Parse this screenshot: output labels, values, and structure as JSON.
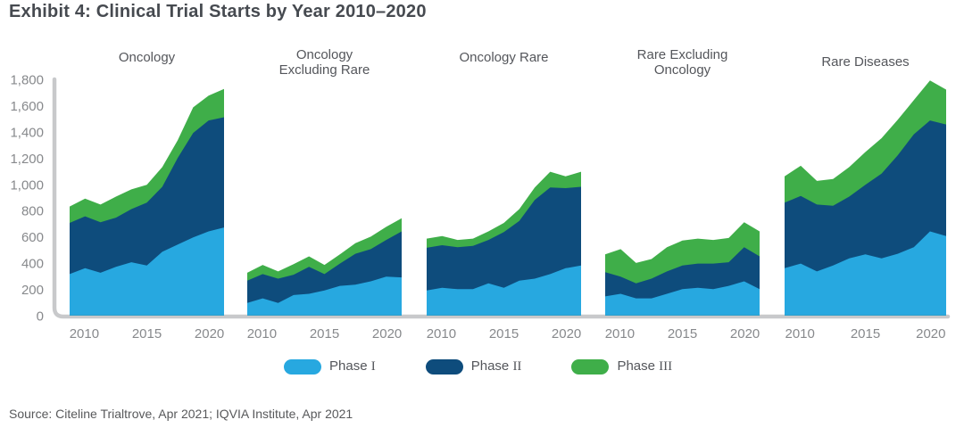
{
  "header": {
    "title": "Exhibit 4: Clinical Trial Starts by Year 2010–2020"
  },
  "footer": {
    "source": "Source: Citeline Trialtrove, Apr 2021; IQVIA Institute, Apr 2021"
  },
  "legend": {
    "items": [
      {
        "word": "Phase",
        "numeral": "I",
        "color": "#27a8e0"
      },
      {
        "word": "Phase",
        "numeral": "II",
        "color": "#0e4c7c"
      },
      {
        "word": "Phase",
        "numeral": "III",
        "color": "#3fae49"
      }
    ]
  },
  "chart_data": {
    "type": "area",
    "stacked": true,
    "title": "Clinical Trial Starts by Year 2010–2020",
    "x": [
      2010,
      2011,
      2012,
      2013,
      2014,
      2015,
      2016,
      2017,
      2018,
      2019,
      2020
    ],
    "x_tick_labels": [
      "2010",
      "2015",
      "2020"
    ],
    "ylim": [
      0,
      1800
    ],
    "y_tick_values": [
      0,
      200,
      400,
      600,
      800,
      1000,
      1200,
      1400,
      1600,
      1800
    ],
    "y_tick_labels": [
      "0",
      "200",
      "400",
      "600",
      "800",
      "1,000",
      "1,200",
      "1,400",
      "1,600",
      "1,800"
    ],
    "grid": false,
    "legend_position": "bottom",
    "series_names": [
      "Phase I",
      "Phase II",
      "Phase III"
    ],
    "colors": {
      "phase_i": "#27a8e0",
      "phase_ii": "#0e4c7c",
      "phase_iii": "#3fae49"
    },
    "panels": [
      {
        "title_lines": [
          "Oncology"
        ],
        "series": [
          {
            "name": "Phase I",
            "values": [
              320,
              365,
              330,
              375,
              410,
              385,
              490,
              545,
              600,
              645,
              675
            ]
          },
          {
            "name": "Phase II",
            "values": [
              390,
              395,
              385,
              375,
              405,
              480,
              495,
              660,
              795,
              845,
              840
            ]
          },
          {
            "name": "Phase III",
            "values": [
              125,
              135,
              135,
              160,
              150,
              135,
              150,
              135,
              195,
              190,
              215
            ]
          }
        ]
      },
      {
        "title_lines": [
          "Oncology",
          "Excluding Rare"
        ],
        "series": [
          {
            "name": "Phase I",
            "values": [
              100,
              135,
              100,
              160,
              170,
              195,
              230,
              240,
              265,
              300,
              295
            ]
          },
          {
            "name": "Phase II",
            "values": [
              170,
              185,
              185,
              155,
              205,
              125,
              170,
              235,
              245,
              280,
              350
            ]
          },
          {
            "name": "Phase III",
            "values": [
              60,
              70,
              55,
              80,
              80,
              70,
              70,
              80,
              95,
              100,
              100
            ]
          }
        ]
      },
      {
        "title_lines": [
          "Oncology Rare"
        ],
        "series": [
          {
            "name": "Phase I",
            "values": [
              195,
              215,
              205,
              205,
              250,
              215,
              270,
              285,
              320,
              365,
              385
            ]
          },
          {
            "name": "Phase II",
            "values": [
              325,
              325,
              320,
              330,
              330,
              425,
              455,
              600,
              660,
              610,
              600
            ]
          },
          {
            "name": "Phase III",
            "values": [
              70,
              70,
              55,
              55,
              65,
              70,
              90,
              95,
              120,
              90,
              115
            ]
          }
        ]
      },
      {
        "title_lines": [
          "Rare Excluding",
          "Oncology"
        ],
        "series": [
          {
            "name": "Phase I",
            "values": [
              150,
              170,
              135,
              135,
              170,
              205,
              215,
              205,
              230,
              265,
              205
            ]
          },
          {
            "name": "Phase II",
            "values": [
              185,
              130,
              115,
              150,
              170,
              180,
              185,
              195,
              180,
              260,
              250
            ]
          },
          {
            "name": "Phase III",
            "values": [
              135,
              210,
              155,
              150,
              185,
              190,
              190,
              180,
              185,
              190,
              190
            ]
          }
        ]
      },
      {
        "title_lines": [
          "Rare Diseases"
        ],
        "series": [
          {
            "name": "Phase I",
            "values": [
              365,
              400,
              340,
              385,
              440,
              470,
              440,
              475,
              525,
              645,
              610
            ]
          },
          {
            "name": "Phase II",
            "values": [
              500,
              515,
              510,
              455,
              470,
              530,
              645,
              750,
              860,
              845,
              850
            ]
          },
          {
            "name": "Phase III",
            "values": [
              200,
              230,
              180,
              205,
              225,
              250,
              270,
              270,
              260,
              305,
              265
            ]
          }
        ]
      }
    ]
  }
}
